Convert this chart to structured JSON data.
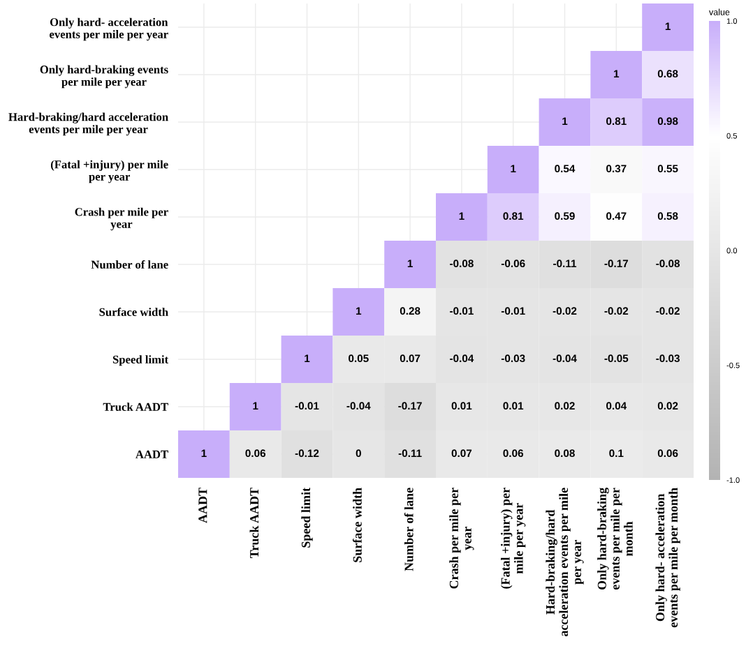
{
  "chart_data": {
    "type": "heatmap",
    "categories": [
      "AADT",
      "Truck AADT",
      "Speed limit",
      "Surface width",
      "Number of lane",
      "Crash per mile per\nyear",
      "(Fatal +injury) per\nmile per year",
      "Hard-braking/hard\nacceleration events per mile\nper year",
      "Only hard-braking\nevents per mile per\nmonth",
      "Only hard- acceleration\nevents per mile per month"
    ],
    "y_categories": [
      "Only hard- acceleration\nevents per mile per year",
      "Only hard-braking events\nper mile per year",
      "Hard-braking/hard acceleration\nevents per mile per year",
      "(Fatal +injury) per mile\nper year",
      "Crash per mile per\nyear",
      "Number of lane",
      "Surface width",
      "Speed limit",
      "Truck AADT",
      "AADT"
    ],
    "cells": [
      [
        null,
        null,
        null,
        null,
        null,
        null,
        null,
        null,
        null,
        1
      ],
      [
        null,
        null,
        null,
        null,
        null,
        null,
        null,
        null,
        1,
        0.68
      ],
      [
        null,
        null,
        null,
        null,
        null,
        null,
        null,
        1,
        0.81,
        0.98
      ],
      [
        null,
        null,
        null,
        null,
        null,
        null,
        1,
        0.54,
        0.37,
        0.55
      ],
      [
        null,
        null,
        null,
        null,
        null,
        1,
        0.81,
        0.59,
        0.47,
        0.58
      ],
      [
        null,
        null,
        null,
        null,
        1,
        -0.08,
        -0.06,
        -0.11,
        -0.17,
        -0.08
      ],
      [
        null,
        null,
        null,
        1,
        0.28,
        -0.01,
        -0.01,
        -0.02,
        -0.02,
        -0.02
      ],
      [
        null,
        null,
        1,
        0.05,
        0.07,
        -0.04,
        -0.03,
        -0.04,
        -0.05,
        -0.03
      ],
      [
        null,
        1,
        -0.01,
        -0.04,
        -0.17,
        0.01,
        0.01,
        0.02,
        0.04,
        0.02
      ],
      [
        1,
        0.06,
        -0.12,
        0,
        -0.11,
        0.07,
        0.06,
        0.08,
        0.1,
        0.06
      ]
    ],
    "colors": [
      "#b3b3b3",
      "#cccccc",
      "#e6e6e6",
      "#ffffff",
      "#c8aefa"
    ],
    "clabel": "value",
    "clim": [
      -1,
      1
    ],
    "cticks": [
      {
        "value": -1,
        "label": "-1.0"
      },
      {
        "value": -0.5,
        "label": "-0.5"
      },
      {
        "value": 0,
        "label": "0.0"
      },
      {
        "value": 0.5,
        "label": "0.5"
      },
      {
        "value": 1,
        "label": "1.0"
      }
    ],
    "data_labels": true,
    "grid": true
  }
}
